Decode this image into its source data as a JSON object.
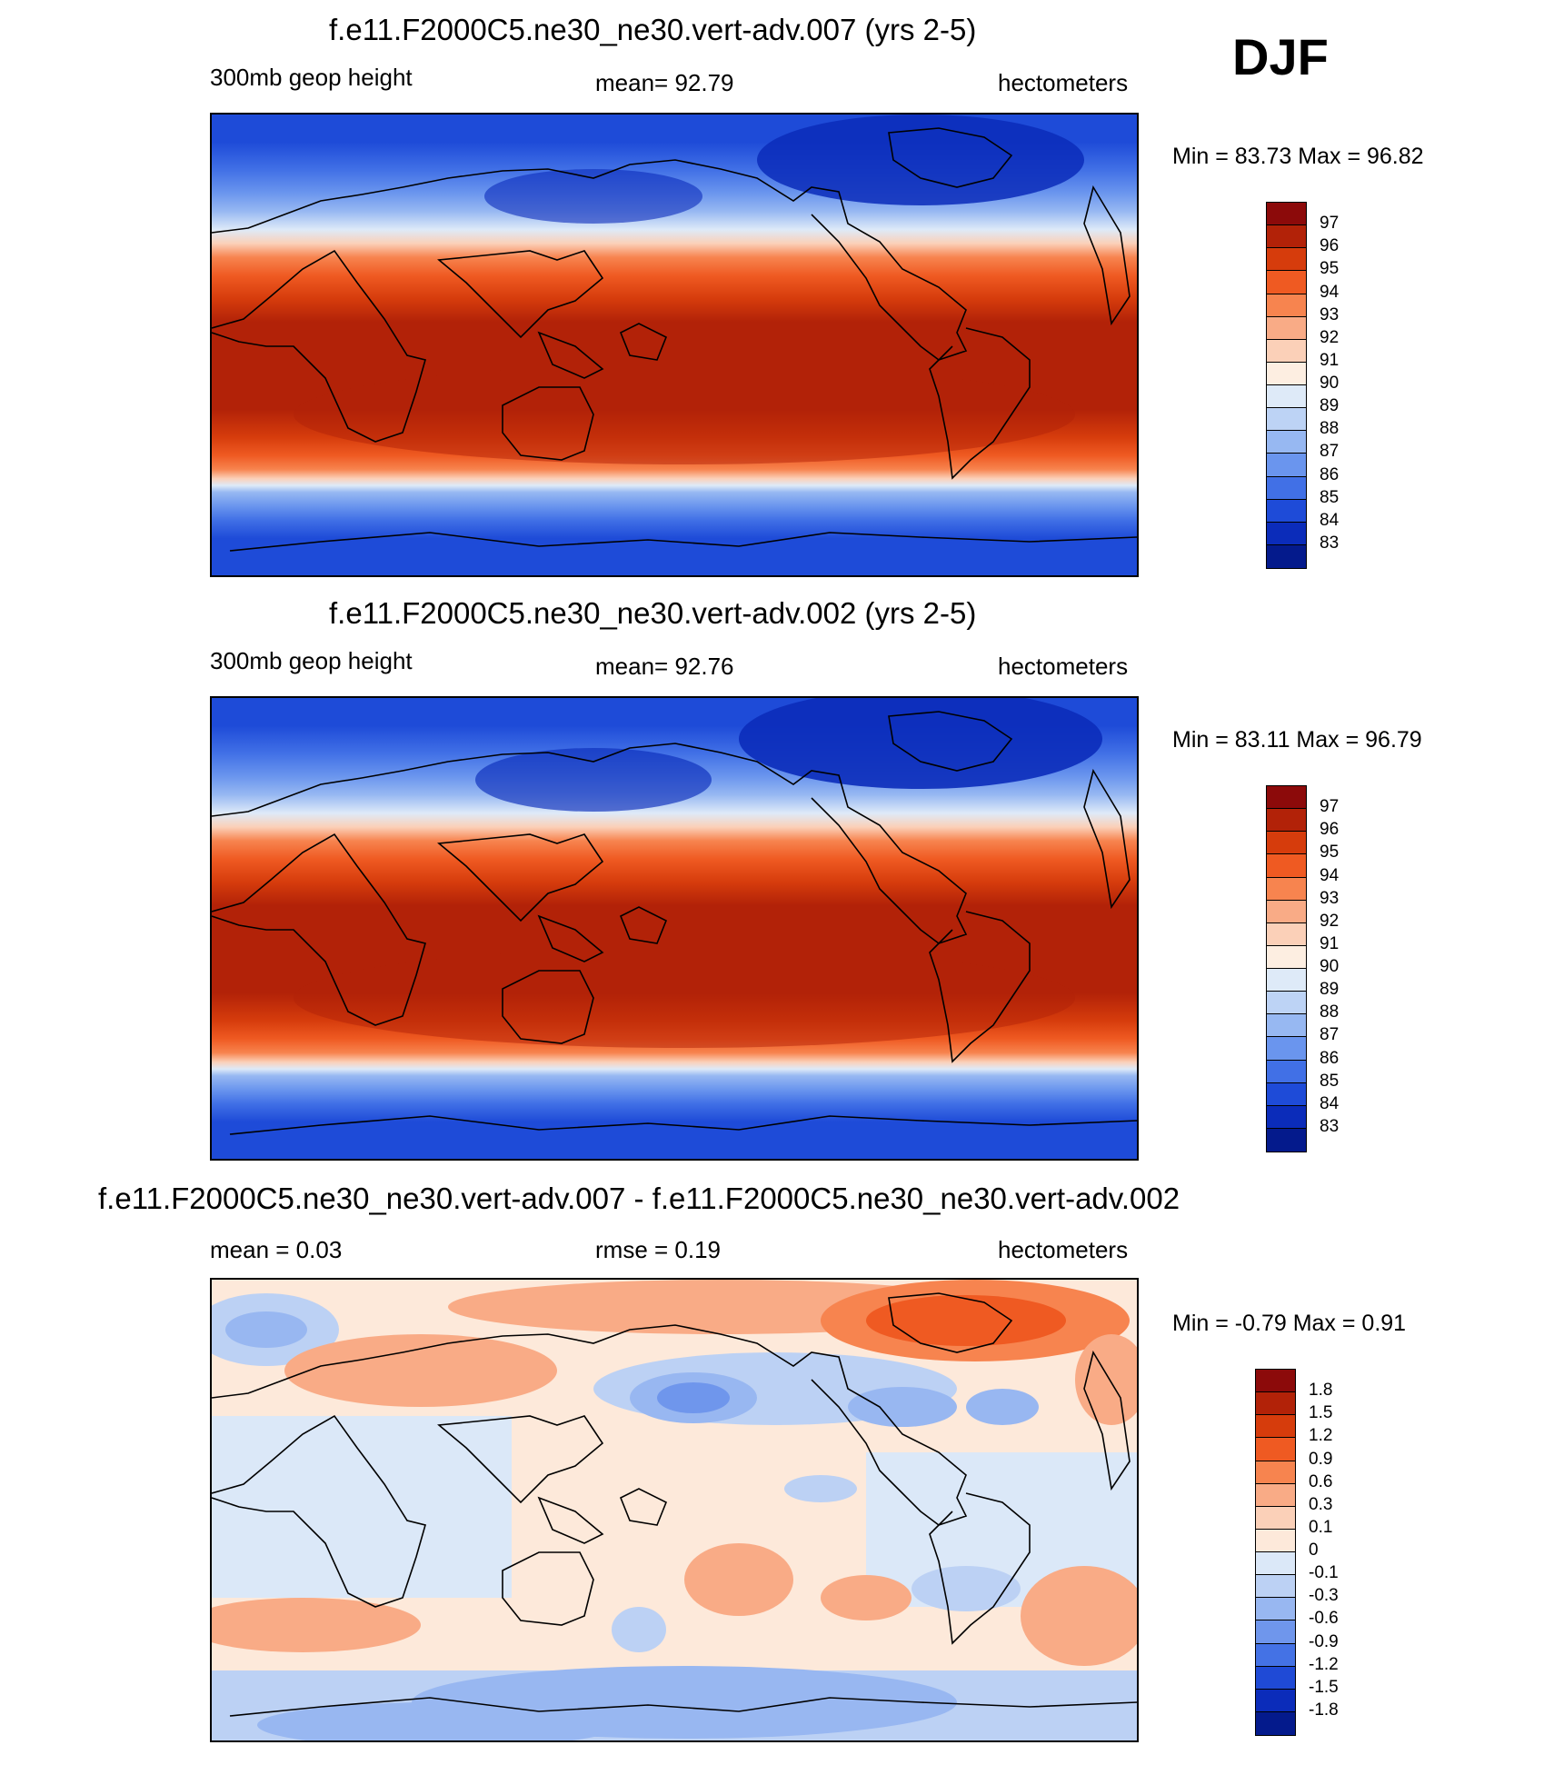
{
  "season": "DJF",
  "panels": [
    {
      "id": "p1",
      "title": "f.e11.F2000C5.ne30_ne30.vert-adv.007 (yrs 2-5)",
      "left_text": "300mb geop height",
      "center_text": "mean=  92.79",
      "right_text": "hectometers",
      "minmax": "Min =  83.73 Max =  96.82",
      "kind": "abs",
      "levels": [
        "97",
        "96",
        "95",
        "94",
        "93",
        "92",
        "91",
        "90",
        "89",
        "88",
        "87",
        "86",
        "85",
        "84",
        "83"
      ]
    },
    {
      "id": "p2",
      "title": "f.e11.F2000C5.ne30_ne30.vert-adv.002 (yrs 2-5)",
      "left_text": "300mb geop height",
      "center_text": "mean=  92.76",
      "right_text": "hectometers",
      "minmax": "Min =  83.11 Max =  96.79",
      "kind": "abs",
      "levels": [
        "97",
        "96",
        "95",
        "94",
        "93",
        "92",
        "91",
        "90",
        "89",
        "88",
        "87",
        "86",
        "85",
        "84",
        "83"
      ]
    },
    {
      "id": "p3",
      "title": "f.e11.F2000C5.ne30_ne30.vert-adv.007 - f.e11.F2000C5.ne30_ne30.vert-adv.002",
      "left_text": "mean =   0.03",
      "center_text": "rmse =   0.19",
      "right_text": "hectometers",
      "minmax": "Min =  -0.79 Max =   0.91",
      "kind": "diff",
      "levels": [
        "1.8",
        "1.5",
        "1.2",
        "0.9",
        "0.6",
        "0.3",
        "0.1",
        "0",
        "-0.1",
        "-0.3",
        "-0.6",
        "-0.9",
        "-1.2",
        "-1.5",
        "-1.8"
      ]
    }
  ],
  "palette_abs": [
    "#8c0a0a",
    "#b22208",
    "#d63c0c",
    "#ef5a22",
    "#f7844f",
    "#f9ab86",
    "#fbd0b8",
    "#fdeee1",
    "#deeaf8",
    "#bdd3f5",
    "#97b8f2",
    "#6a95ee",
    "#4170e6",
    "#1e4bd8",
    "#0b2cba",
    "#041a8c"
  ],
  "palette_diff": [
    "#8c0a0a",
    "#b22208",
    "#d63c0c",
    "#ef5a22",
    "#f7844f",
    "#f9ab86",
    "#fbd0b8",
    "#fde9da",
    "#dbe8f8",
    "#bcd1f4",
    "#98b7f1",
    "#6f96ec",
    "#4472e5",
    "#1f4ad6",
    "#0b2cba",
    "#041a8c"
  ]
}
